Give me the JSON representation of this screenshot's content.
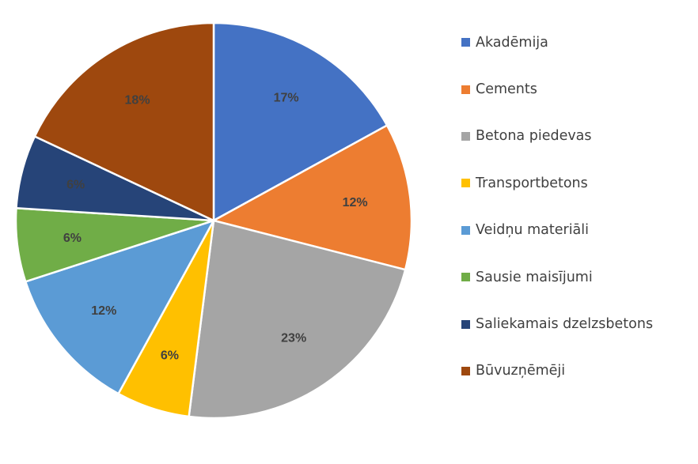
{
  "chart_data": {
    "type": "pie",
    "title": "",
    "legend_position": "right",
    "start_angle_deg": 0,
    "direction": "clockwise",
    "slices": [
      {
        "label": "Akadēmija",
        "value": 17,
        "display": "17%",
        "color": "#4472C4"
      },
      {
        "label": "Cements",
        "value": 12,
        "display": "12%",
        "color": "#ED7D31"
      },
      {
        "label": "Betona piedevas",
        "value": 23,
        "display": "23%",
        "color": "#A5A5A5"
      },
      {
        "label": "Transportbetons",
        "value": 6,
        "display": "6%",
        "color": "#FFC000"
      },
      {
        "label": "Veidņu materiāli",
        "value": 12,
        "display": "12%",
        "color": "#5B9BD5"
      },
      {
        "label": "Sausie maisījumi",
        "value": 6,
        "display": "6%",
        "color": "#70AD47"
      },
      {
        "label": "Saliekamais dzelzsbetons",
        "value": 6,
        "display": "6%",
        "color": "#264478"
      },
      {
        "label": "Būvuzņēmēji",
        "value": 18,
        "display": "18%",
        "color": "#9E480E"
      }
    ]
  }
}
